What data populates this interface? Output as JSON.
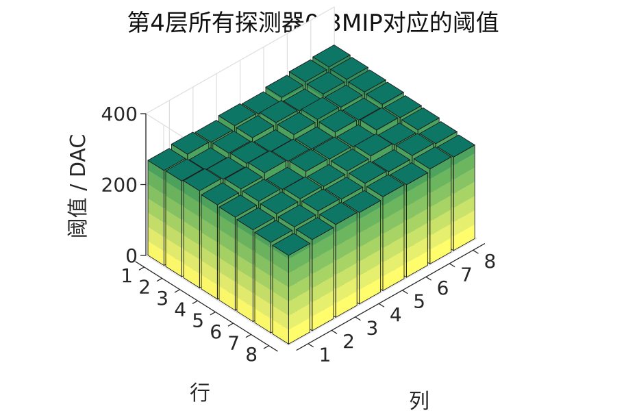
{
  "chart_data": {
    "type": "bar3d",
    "title": "第4层所有探测器0.3MIP对应的阈值",
    "zlabel": "阈值 / DAC",
    "row_label": "行",
    "col_label": "列",
    "rows": [
      "1",
      "2",
      "3",
      "4",
      "5",
      "6",
      "7",
      "8"
    ],
    "cols": [
      "1",
      "2",
      "3",
      "4",
      "5",
      "6",
      "7",
      "8"
    ],
    "zticks": [
      "0",
      "200",
      "400"
    ],
    "zlim": [
      0,
      400
    ],
    "values": [
      [
        268,
        276,
        272,
        281,
        277,
        286,
        292,
        296
      ],
      [
        270,
        264,
        273,
        279,
        284,
        279,
        289,
        293
      ],
      [
        274,
        269,
        276,
        271,
        282,
        287,
        284,
        289
      ],
      [
        266,
        273,
        281,
        276,
        273,
        283,
        279,
        286
      ],
      [
        263,
        270,
        266,
        279,
        276,
        273,
        283,
        280
      ],
      [
        259,
        266,
        271,
        268,
        274,
        279,
        272,
        277
      ],
      [
        255,
        261,
        268,
        264,
        271,
        266,
        274,
        270
      ],
      [
        250,
        257,
        262,
        258,
        265,
        261,
        268,
        264
      ]
    ],
    "colormap": [
      "#fffd6c",
      "#e6ef6e",
      "#c8e26a",
      "#a8d466",
      "#88c464",
      "#6cb660",
      "#4ea45e",
      "#33925c",
      "#1e8460",
      "#0f7a60",
      "#0d7664"
    ],
    "grid": true
  }
}
